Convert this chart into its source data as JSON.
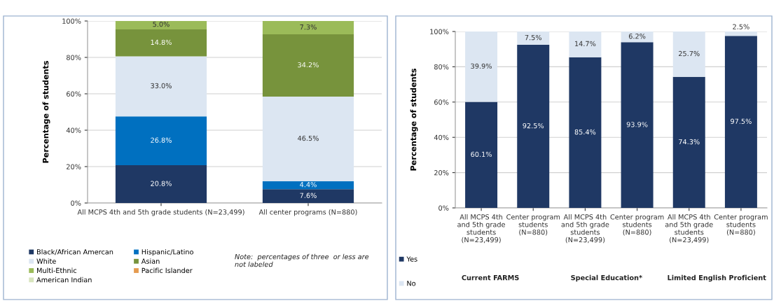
{
  "chart_data": [
    {
      "type": "bar",
      "stacked": true,
      "ylabel": "Percentage of students",
      "categories": [
        "All MCPS 4th and 5th grade students (N=23,499)",
        "All center programs (N=880)"
      ],
      "series": [
        {
          "name": "Black/African Amercan",
          "color": "#1f3864",
          "values": [
            20.8,
            7.6
          ],
          "value_labels": [
            "20.8%",
            "7.6%"
          ]
        },
        {
          "name": "Hispanic/Latino",
          "color": "#0070c0",
          "values": [
            26.8,
            4.4
          ],
          "value_labels": [
            "26.8%",
            "4.4%"
          ]
        },
        {
          "name": "White",
          "color": "#dce6f2",
          "values": [
            33.0,
            46.5
          ],
          "value_labels": [
            "33.0%",
            "46.5%"
          ]
        },
        {
          "name": "Asian",
          "color": "#77933c",
          "values": [
            14.8,
            34.2
          ],
          "value_labels": [
            "14.8%",
            "34.2%"
          ]
        },
        {
          "name": "Multi-Ethnic",
          "color": "#9bbb59",
          "values": [
            5.0,
            7.3
          ],
          "value_labels": [
            "5.0%",
            "7.3%"
          ]
        },
        {
          "name": "Pacific Islander",
          "color": "#e59b4f",
          "values": [
            null,
            null
          ],
          "value_labels": [
            null,
            null
          ]
        },
        {
          "name": "American Indian",
          "color": "#d7e4bd",
          "values": [
            null,
            null
          ],
          "value_labels": [
            null,
            null
          ]
        }
      ],
      "ylim": [
        0,
        100
      ],
      "yticks": [
        {
          "value": 0,
          "label": "0%"
        },
        {
          "value": 20,
          "label": "20%"
        },
        {
          "value": 40,
          "label": "40%"
        },
        {
          "value": 60,
          "label": "60%"
        },
        {
          "value": 80,
          "label": "80%"
        },
        {
          "value": 100,
          "label": "100%"
        }
      ],
      "grid": "y",
      "legend": "bottom",
      "annotations": [
        "Note:  percentages of three  or less are\nnot labeled"
      ]
    },
    {
      "type": "bar",
      "stacked": true,
      "ylabel": "Percentage of students",
      "categories": [
        "All MCPS 4th\nand 5th grade\nstudents\n(N=23,499)",
        "Center program\nstudents\n(N=880)",
        "All MCPS 4th\nand 5th grade\nstudents\n(N=23,499)",
        "Center program\nstudents\n(N=880)",
        "All MCPS 4th\nand 5th grade\nstudents\n(N=23,499)",
        "Center program\nstudents\n(N=880)"
      ],
      "series": [
        {
          "name": "Yes",
          "color": "#1f3864",
          "values": [
            60.1,
            92.5,
            85.4,
            93.9,
            74.3,
            97.5
          ],
          "value_labels": [
            "60.1%",
            "92.5%",
            "85.4%",
            "93.9%",
            "74.3%",
            "97.5%"
          ]
        },
        {
          "name": "No",
          "color": "#dce6f2",
          "values": [
            39.9,
            7.5,
            14.7,
            6.2,
            25.7,
            2.5
          ],
          "value_labels": [
            "39.9%",
            "7.5%",
            "14.7%",
            "6.2%",
            "25.7%",
            "2.5%"
          ]
        }
      ],
      "ylim": [
        0,
        100
      ],
      "yticks": [
        {
          "value": 0,
          "label": "0%"
        },
        {
          "value": 20,
          "label": "20%"
        },
        {
          "value": 40,
          "label": "40%"
        },
        {
          "value": 60,
          "label": "60%"
        },
        {
          "value": 80,
          "label": "80%"
        },
        {
          "value": 100,
          "label": "100%"
        }
      ],
      "grid": "y",
      "legend": "bottom left",
      "annotations": [
        "Current FARMS",
        "Special Education*",
        "Limited English Proficient"
      ]
    }
  ]
}
